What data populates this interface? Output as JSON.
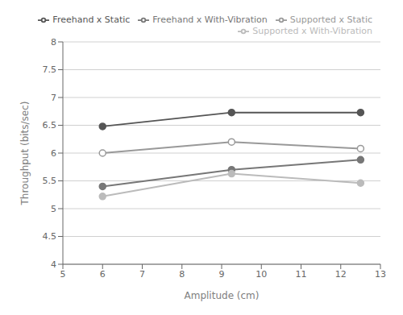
{
  "chart_data": {
    "type": "line",
    "x": [
      6,
      9.25,
      12.5
    ],
    "series": [
      {
        "name": "Freehand x Static",
        "color": "#555555",
        "marker": "circle",
        "values": [
          6.48,
          6.73,
          6.73
        ]
      },
      {
        "name": "Supported x Static",
        "color": "#999999",
        "marker": "open circle",
        "values": [
          6.0,
          6.2,
          6.08
        ]
      },
      {
        "name": "Freehand x With-Vibration",
        "color": "#777777",
        "marker": "circle",
        "values": [
          5.4,
          5.7,
          5.88
        ]
      },
      {
        "name": "Supported x With-Vibration",
        "color": "#bbbbbb",
        "marker": "circle",
        "values": [
          5.22,
          5.63,
          5.46
        ]
      }
    ],
    "x_label": "Amplitude (cm)",
    "y_label": "Throughput (bits/sec)",
    "xlim": [
      5,
      13
    ],
    "ylim": [
      4,
      8
    ],
    "xticks": [
      5,
      6,
      7,
      8,
      9,
      10,
      11,
      12,
      13
    ],
    "yticks": [
      4,
      4.5,
      5,
      5.5,
      6,
      6.5,
      7,
      7.5,
      8
    ],
    "grid": "y",
    "legend": "upper right"
  }
}
